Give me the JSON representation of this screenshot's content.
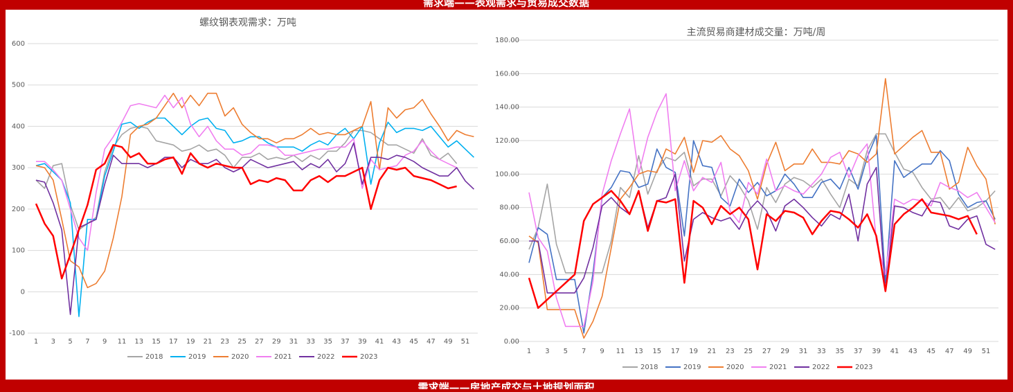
{
  "header": {
    "title": "需求端——表观需求与贸易成交数据"
  },
  "footer": {
    "title": "需求端——房地产成交与土地规划面积"
  },
  "chart_data": [
    {
      "type": "line",
      "title": "螺纹钢表观需求：万吨",
      "categories": [
        "1",
        null,
        "3",
        null,
        "5",
        null,
        "7",
        null,
        "9",
        null,
        "11",
        null,
        "13",
        null,
        "15",
        null,
        "17",
        null,
        "19",
        null,
        "21",
        null,
        "23",
        null,
        "25",
        null,
        "27",
        null,
        "29",
        null,
        "31",
        null,
        "33",
        null,
        "35",
        null,
        "37",
        null,
        "39",
        null,
        "41",
        null,
        "43",
        null,
        "45",
        null,
        "47",
        null,
        "49",
        null,
        "51",
        null
      ],
      "ylim": [
        -100,
        600
      ],
      "yticks": [
        -100,
        0,
        100,
        200,
        300,
        400,
        500,
        600
      ],
      "grid": true,
      "legend": "bottom",
      "series": [
        {
          "name": "2018",
          "color": "#a5a5a5",
          "values": [
            270,
            250,
            305,
            310,
            210,
            150,
            165,
            180,
            290,
            350,
            380,
            395,
            400,
            395,
            365,
            360,
            355,
            340,
            345,
            355,
            340,
            345,
            330,
            300,
            325,
            325,
            335,
            320,
            325,
            320,
            330,
            315,
            330,
            320,
            340,
            340,
            360,
            390,
            390,
            385,
            370,
            355,
            355,
            345,
            335,
            370,
            330,
            320,
            335,
            310,
            null,
            null
          ]
        },
        {
          "name": "2019",
          "color": "#00b0f0",
          "values": [
            305,
            310,
            290,
            270,
            215,
            -60,
            175,
            175,
            280,
            340,
            405,
            410,
            395,
            410,
            420,
            420,
            400,
            380,
            400,
            415,
            420,
            395,
            390,
            360,
            365,
            375,
            375,
            360,
            350,
            350,
            350,
            340,
            355,
            365,
            355,
            380,
            395,
            370,
            400,
            260,
            360,
            410,
            385,
            395,
            395,
            390,
            400,
            375,
            350,
            365,
            345,
            325
          ]
        },
        {
          "name": "2020",
          "color": "#ed7d31",
          "values": [
            305,
            300,
            270,
            175,
            75,
            60,
            10,
            20,
            50,
            130,
            230,
            380,
            400,
            405,
            420,
            450,
            480,
            445,
            475,
            450,
            480,
            480,
            425,
            445,
            405,
            385,
            370,
            370,
            360,
            370,
            370,
            380,
            395,
            380,
            385,
            380,
            380,
            390,
            400,
            460,
            295,
            445,
            420,
            440,
            445,
            465,
            430,
            400,
            365,
            390,
            380,
            375
          ]
        },
        {
          "name": "2021",
          "color": "#f07ef0",
          "values": [
            315,
            315,
            295,
            270,
            200,
            130,
            100,
            240,
            345,
            375,
            410,
            450,
            455,
            450,
            445,
            475,
            445,
            470,
            405,
            375,
            400,
            365,
            345,
            345,
            330,
            335,
            355,
            355,
            350,
            330,
            330,
            335,
            340,
            345,
            345,
            350,
            350,
            370,
            250,
            320,
            295,
            300,
            305,
            330,
            340,
            365,
            340,
            320,
            310,
            300,
            null,
            null
          ]
        },
        {
          "name": "2022",
          "color": "#7030a0",
          "values": [
            270,
            265,
            215,
            150,
            -55,
            155,
            165,
            175,
            260,
            330,
            310,
            310,
            310,
            300,
            310,
            325,
            325,
            300,
            320,
            310,
            310,
            320,
            300,
            290,
            300,
            320,
            310,
            300,
            305,
            310,
            315,
            295,
            310,
            300,
            320,
            290,
            310,
            360,
            260,
            325,
            325,
            320,
            330,
            325,
            315,
            300,
            290,
            280,
            280,
            300,
            268,
            248
          ]
        },
        {
          "name": "2023",
          "color": "#ff0000",
          "values": [
            213,
            165,
            135,
            32,
            90,
            150,
            210,
            295,
            310,
            355,
            350,
            325,
            335,
            310,
            310,
            320,
            325,
            285,
            335,
            310,
            300,
            310,
            305,
            300,
            300,
            260,
            270,
            265,
            275,
            270,
            245,
            245,
            270,
            280,
            265,
            280,
            280,
            290,
            300,
            200,
            270,
            300,
            295,
            300,
            280,
            275,
            270,
            260,
            250,
            255,
            null,
            null
          ]
        }
      ]
    },
    {
      "type": "line",
      "title": "主流贸易商建材成交量：万吨/周",
      "categories": [
        "1",
        null,
        "3",
        null,
        "5",
        null,
        "7",
        null,
        "9",
        null,
        "11",
        null,
        "13",
        null,
        "15",
        null,
        "17",
        null,
        "19",
        null,
        "21",
        null,
        "23",
        null,
        "25",
        null,
        "27",
        null,
        "29",
        null,
        "31",
        null,
        "33",
        null,
        "35",
        null,
        "37",
        null,
        "39",
        null,
        "41",
        null,
        "43",
        null,
        "45",
        null,
        "47",
        null,
        "49",
        null,
        "51",
        null
      ],
      "ylim": [
        0,
        180
      ],
      "yticks": [
        {
          "value": 0,
          "label": "0.00"
        },
        {
          "value": 20,
          "label": "20.00"
        },
        {
          "value": 40,
          "label": "40.00"
        },
        {
          "value": 60,
          "label": "60.00"
        },
        {
          "value": 80,
          "label": "80.00"
        },
        {
          "value": 100,
          "label": "100.00"
        },
        {
          "value": 120,
          "label": "120.00"
        },
        {
          "value": 140,
          "label": "140.00"
        },
        {
          "value": 160,
          "label": "160.00"
        },
        {
          "value": 180,
          "label": "180.00"
        }
      ],
      "grid": true,
      "legend": "bottom",
      "series": [
        {
          "name": "2018",
          "color": "#a5a5a5",
          "values": [
            55,
            68,
            94,
            58,
            41,
            41,
            41,
            41,
            41,
            60,
            92,
            86,
            111,
            88,
            102,
            110,
            108,
            113,
            93,
            97,
            97,
            87,
            99,
            93,
            84,
            67,
            92,
            83,
            94,
            98,
            96,
            92,
            97,
            88,
            80,
            97,
            93,
            114,
            124,
            124,
            113,
            103,
            101,
            92,
            85,
            86,
            79,
            86,
            78,
            80,
            84,
            90
          ]
        },
        {
          "name": "2019",
          "color": "#4472c4",
          "values": [
            47,
            68,
            64,
            37,
            37,
            37,
            5,
            41,
            86,
            92,
            102,
            101,
            92,
            94,
            115,
            104,
            101,
            63,
            120,
            105,
            104,
            86,
            81,
            97,
            89,
            95,
            87,
            90,
            100,
            94,
            86,
            86,
            95,
            97,
            91,
            104,
            91,
            110,
            123,
            35,
            108,
            98,
            102,
            106,
            106,
            114,
            108,
            88,
            80,
            83,
            84,
            73
          ]
        },
        {
          "name": "2020",
          "color": "#ed7d31",
          "values": [
            63,
            59,
            19,
            19,
            19,
            19,
            2,
            12,
            27,
            56,
            85,
            92,
            100,
            102,
            101,
            115,
            112,
            122,
            101,
            120,
            119,
            123,
            115,
            111,
            102,
            85,
            106,
            119,
            102,
            106,
            106,
            115,
            107,
            107,
            106,
            114,
            112,
            107,
            112,
            157,
            112,
            117,
            122,
            126,
            113,
            113,
            91,
            95,
            116,
            105,
            97,
            70
          ]
        },
        {
          "name": "2021",
          "color": "#f07ef0",
          "values": [
            89,
            62,
            54,
            26,
            9,
            9,
            9,
            36,
            88,
            108,
            124,
            139,
            100,
            122,
            137,
            148,
            90,
            108,
            90,
            98,
            95,
            107,
            78,
            71,
            95,
            88,
            109,
            90,
            93,
            90,
            88,
            94,
            100,
            110,
            113,
            98,
            111,
            118,
            60,
            40,
            85,
            82,
            85,
            84,
            81,
            95,
            92,
            90,
            86,
            89,
            80,
            71
          ]
        },
        {
          "name": "2022",
          "color": "#7030a0",
          "values": [
            60,
            60,
            29,
            29,
            29,
            29,
            38,
            56,
            81,
            86,
            80,
            76,
            90,
            68,
            84,
            86,
            100,
            48,
            73,
            77,
            74,
            72,
            74,
            67,
            78,
            84,
            78,
            66,
            81,
            85,
            80,
            74,
            69,
            76,
            73,
            88,
            60,
            94,
            104,
            30,
            81,
            80,
            77,
            75,
            84,
            83,
            69,
            67,
            73,
            75,
            58,
            55
          ]
        },
        {
          "name": "2023",
          "color": "#ff0000",
          "values": [
            38,
            20,
            25,
            30,
            35,
            40,
            72,
            82,
            86,
            90,
            84,
            76,
            90,
            66,
            84,
            83,
            85,
            35,
            84,
            80,
            70,
            81,
            76,
            80,
            73,
            43,
            76,
            72,
            78,
            77,
            74,
            64,
            72,
            78,
            77,
            73,
            68,
            76,
            63,
            30,
            70,
            76,
            80,
            85,
            77,
            76,
            75,
            73,
            75,
            64,
            null,
            null
          ]
        }
      ]
    }
  ]
}
